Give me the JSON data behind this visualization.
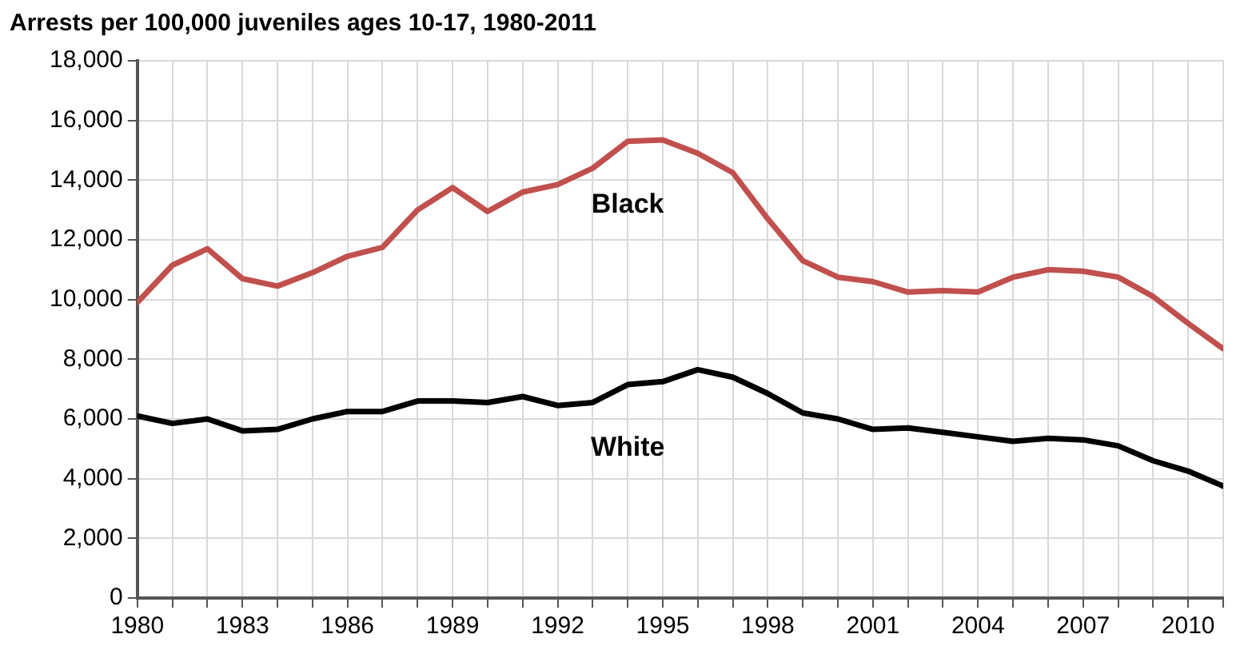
{
  "chart_data": {
    "type": "line",
    "title": "Arrests per 100,000 juveniles ages 10-17, 1980-2011",
    "x": [
      1980,
      1981,
      1982,
      1983,
      1984,
      1985,
      1986,
      1987,
      1988,
      1989,
      1990,
      1991,
      1992,
      1993,
      1994,
      1995,
      1996,
      1997,
      1998,
      1999,
      2000,
      2001,
      2002,
      2003,
      2004,
      2005,
      2006,
      2007,
      2008,
      2009,
      2010,
      2011
    ],
    "series": [
      {
        "name": "Black",
        "color": "#c0504d",
        "values": [
          9900,
          11150,
          11700,
          10700,
          10450,
          10900,
          11450,
          11750,
          13000,
          13750,
          12950,
          13600,
          13850,
          14400,
          15300,
          15350,
          14900,
          14250,
          12700,
          11300,
          10750,
          10600,
          10250,
          10300,
          10250,
          10750,
          11000,
          10950,
          10750,
          10100,
          9200,
          8350
        ]
      },
      {
        "name": "White",
        "color": "#000000",
        "values": [
          6100,
          5850,
          6000,
          5600,
          5650,
          6000,
          6250,
          6250,
          6600,
          6600,
          6550,
          6750,
          6450,
          6550,
          7150,
          7250,
          7650,
          7400,
          6850,
          6200,
          6000,
          5650,
          5700,
          5550,
          5400,
          5250,
          5350,
          5300,
          5100,
          4600,
          4250,
          3750
        ]
      }
    ],
    "xlim": [
      1980,
      2011
    ],
    "xticks": [
      1980,
      {
        "value": 1981,
        "label": null
      },
      {
        "value": 1982,
        "label": null
      },
      1983,
      {
        "value": 1984,
        "label": null
      },
      {
        "value": 1985,
        "label": null
      },
      1986,
      {
        "value": 1987,
        "label": null
      },
      {
        "value": 1988,
        "label": null
      },
      1989,
      {
        "value": 1990,
        "label": null
      },
      {
        "value": 1991,
        "label": null
      },
      1992,
      {
        "value": 1993,
        "label": null
      },
      {
        "value": 1994,
        "label": null
      },
      1995,
      {
        "value": 1996,
        "label": null
      },
      {
        "value": 1997,
        "label": null
      },
      1998,
      {
        "value": 1999,
        "label": null
      },
      {
        "value": 2000,
        "label": null
      },
      2001,
      {
        "value": 2002,
        "label": null
      },
      {
        "value": 2003,
        "label": null
      },
      2004,
      {
        "value": 2005,
        "label": null
      },
      {
        "value": 2006,
        "label": null
      },
      2007,
      {
        "value": 2008,
        "label": null
      },
      {
        "value": 2009,
        "label": null
      },
      2010,
      {
        "value": 2011,
        "label": null
      }
    ],
    "ylim": [
      0,
      18000
    ],
    "yticks": [
      0,
      {
        "value": 2000,
        "label": "2,000"
      },
      {
        "value": 4000,
        "label": "4,000"
      },
      {
        "value": 6000,
        "label": "6,000"
      },
      {
        "value": 8000,
        "label": "8,000"
      },
      {
        "value": 10000,
        "label": "10,000"
      },
      {
        "value": 12000,
        "label": "12,000"
      },
      {
        "value": 14000,
        "label": "14,000"
      },
      {
        "value": 16000,
        "label": "16,000"
      },
      {
        "value": 18000,
        "label": "18,000"
      }
    ],
    "grid": true,
    "legend": false,
    "marker": "none",
    "line_style": "solid"
  }
}
